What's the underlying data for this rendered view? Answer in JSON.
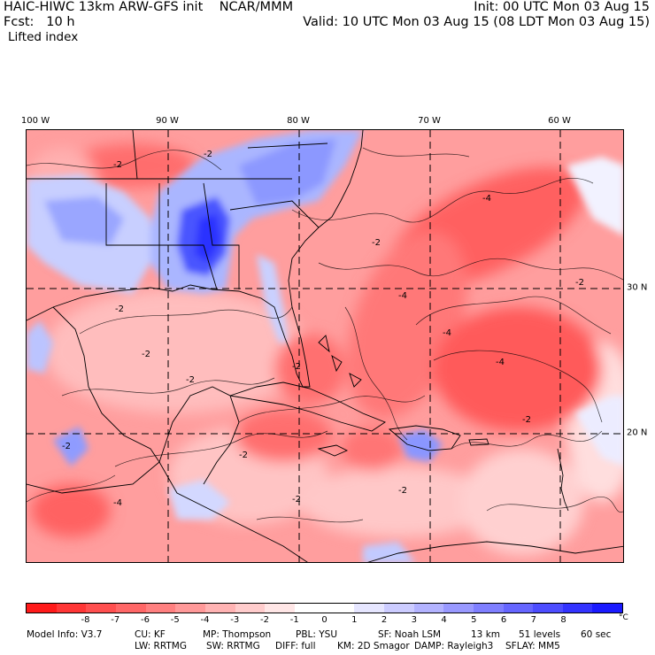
{
  "header": {
    "model_title": "HAIC-HIWC 13km ARW-GFS init    NCAR/MMM",
    "forecast": "Fcst:   10 h",
    "field": "Lifted index",
    "init_time": "Init: 00 UTC Mon 03 Aug 15",
    "valid_time": "Valid: 10 UTC Mon 03 Aug 15 (08 LDT Mon 03 Aug 15)"
  },
  "map": {
    "longitude_labels": [
      "100 W",
      "90 W",
      "80 W",
      "70 W",
      "60 W"
    ],
    "latitude_labels": [
      "30 N",
      "20 N"
    ],
    "contour_labels": [
      "-2",
      "-2",
      "-2",
      "-2",
      "-4",
      "-4",
      "-2",
      "-2",
      "-2",
      "-2",
      "-4",
      "-2",
      "-2",
      "-4",
      "-2",
      "-2",
      "-2",
      "-4"
    ]
  },
  "colorbar": {
    "colors": [
      "#ff1a1a",
      "#ff3636",
      "#ff4f4f",
      "#ff6767",
      "#ff8080",
      "#ff9999",
      "#ffb3b3",
      "#ffcccc",
      "#ffe6e6",
      "#ffffff",
      "#ffffff",
      "#e6e6ff",
      "#ccccff",
      "#b3b3ff",
      "#9999ff",
      "#7f7fff",
      "#6666ff",
      "#4d4dff",
      "#3333ff",
      "#1a1aff"
    ],
    "ticks": [
      "-8",
      "-7",
      "-6",
      "-5",
      "-4",
      "-3",
      "-2",
      "-1",
      "0",
      "1",
      "2",
      "3",
      "4",
      "5",
      "6",
      "7",
      "8"
    ],
    "unit": "°C"
  },
  "footer": {
    "line1": [
      {
        "label": "Model Info: V3.7"
      },
      {
        "label": "CU: KF"
      },
      {
        "label": "MP: Thompson"
      },
      {
        "label": "PBL: YSU"
      },
      {
        "label": "SF: Noah LSM"
      },
      {
        "label": "13 km"
      },
      {
        "label": "51 levels"
      },
      {
        "label": "60 sec"
      }
    ],
    "line2": [
      {
        "label": "LW: RRTMG"
      },
      {
        "label": "SW: RRTMG"
      },
      {
        "label": "DIFF: full"
      },
      {
        "label": "KM: 2D Smagor"
      },
      {
        "label": "DAMP: Rayleigh3"
      },
      {
        "label": "SFLAY: MM5"
      }
    ]
  }
}
